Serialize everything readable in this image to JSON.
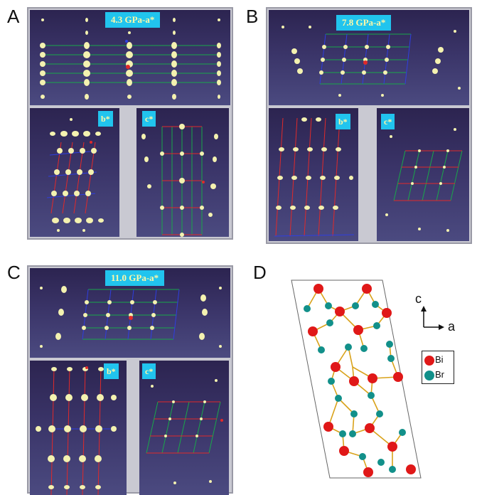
{
  "figure": {
    "panels": [
      {
        "letter": "A",
        "title": "4.3 GPa-a*",
        "b_label": "b*",
        "c_label": "c*"
      },
      {
        "letter": "B",
        "title": "7.8 GPa-a*",
        "b_label": "b*",
        "c_label": "c*"
      },
      {
        "letter": "C",
        "title": "11.0 GPa-a*",
        "b_label": "b*",
        "c_label": "c*"
      },
      {
        "letter": "D"
      }
    ],
    "structure": {
      "axis_c": "c",
      "axis_a": "a",
      "legend": [
        {
          "label": "Bi",
          "color": "#e01818"
        },
        {
          "label": "Br",
          "color": "#12908a"
        }
      ]
    },
    "colors": {
      "spot": "#f4f2b0",
      "grid_green": "#19a84a",
      "grid_red": "#e02a2a",
      "grid_blue": "#2f3fe0",
      "tag_bg": "#21c4ee",
      "tag_text": "#fff8a8",
      "bond": "#d9a21a"
    }
  }
}
